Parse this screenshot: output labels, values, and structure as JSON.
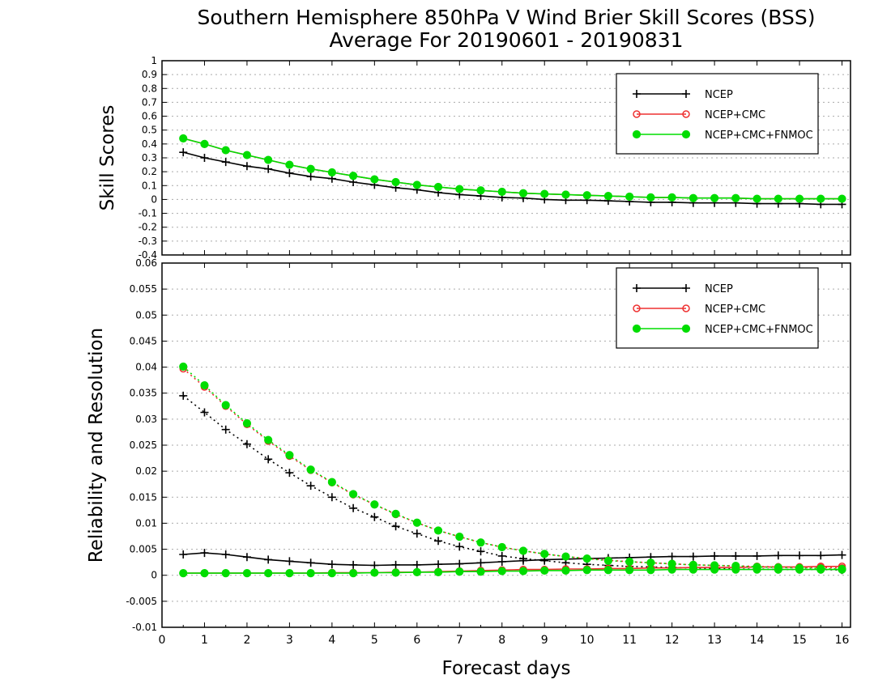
{
  "chart_data": [
    {
      "type": "line",
      "title": "Southern Hemisphere 850hPa V Wind Brier Skill Scores (BSS)",
      "subtitle": "Average For 20190601 - 20190831",
      "ylabel": "Skill Scores",
      "xlabel": "",
      "xlim": [
        0,
        16.2
      ],
      "ylim": [
        -0.4,
        1
      ],
      "yticks": [
        "1",
        "0.9",
        "0.8",
        "0.7",
        "0.6",
        "0.5",
        "0.4",
        "0.3",
        "0.2",
        "0.1",
        "0",
        "-0.1",
        "-0.2",
        "-0.3",
        "-0.4"
      ],
      "grid": true,
      "legend_position": "top-right",
      "legend": [
        "NCEP",
        "NCEP+CMC",
        "NCEP+CMC+FNMOC"
      ],
      "x": [
        0.5,
        1,
        1.5,
        2,
        2.5,
        3,
        3.5,
        4,
        4.5,
        5,
        5.5,
        6,
        6.5,
        7,
        7.5,
        8,
        8.5,
        9,
        9.5,
        10,
        10.5,
        11,
        11.5,
        12,
        12.5,
        13,
        13.5,
        14,
        14.5,
        15,
        15.5,
        16
      ],
      "series": [
        {
          "name": "NCEP",
          "color": "#000000",
          "marker": "plus",
          "style": "solid",
          "values": [
            0.34,
            0.3,
            0.27,
            0.24,
            0.22,
            0.19,
            0.165,
            0.15,
            0.125,
            0.105,
            0.085,
            0.07,
            0.05,
            0.035,
            0.025,
            0.015,
            0.01,
            0.0,
            -0.005,
            -0.005,
            -0.01,
            -0.015,
            -0.02,
            -0.02,
            -0.025,
            -0.025,
            -0.025,
            -0.03,
            -0.03,
            -0.03,
            -0.035,
            -0.035
          ]
        },
        {
          "name": "NCEP+CMC",
          "color": "#ee3030",
          "marker": "open-circle",
          "style": "solid",
          "values": [
            0.44,
            0.4,
            0.355,
            0.32,
            0.285,
            0.25,
            0.22,
            0.195,
            0.17,
            0.145,
            0.125,
            0.105,
            0.09,
            0.075,
            0.065,
            0.055,
            0.045,
            0.04,
            0.035,
            0.03,
            0.025,
            0.02,
            0.015,
            0.015,
            0.01,
            0.01,
            0.01,
            0.005,
            0.005,
            0.005,
            0.005,
            0.005
          ]
        },
        {
          "name": "NCEP+CMC+FNMOC",
          "color": "#00dd00",
          "marker": "filled-circle",
          "style": "solid",
          "values": [
            0.44,
            0.4,
            0.355,
            0.32,
            0.285,
            0.25,
            0.22,
            0.195,
            0.17,
            0.145,
            0.125,
            0.105,
            0.09,
            0.075,
            0.065,
            0.055,
            0.045,
            0.04,
            0.035,
            0.03,
            0.025,
            0.02,
            0.015,
            0.015,
            0.01,
            0.01,
            0.01,
            0.005,
            0.005,
            0.005,
            0.005,
            0.005
          ]
        }
      ]
    },
    {
      "type": "line",
      "ylabel": "Reliability and Resolution",
      "xlabel": "Forecast days",
      "xlim": [
        0,
        16.2
      ],
      "ylim": [
        -0.01,
        0.06
      ],
      "xticks": [
        "0",
        "1",
        "2",
        "3",
        "4",
        "5",
        "6",
        "7",
        "8",
        "9",
        "10",
        "11",
        "12",
        "13",
        "14",
        "15",
        "16"
      ],
      "yticks": [
        "0.06",
        "0.055",
        "0.05",
        "0.045",
        "0.04",
        "0.035",
        "0.03",
        "0.025",
        "0.02",
        "0.015",
        "0.01",
        "0.005",
        "0",
        "-0.005",
        "-0.01"
      ],
      "grid": true,
      "legend_position": "top-right",
      "legend": [
        "NCEP",
        "NCEP+CMC",
        "NCEP+CMC+FNMOC"
      ],
      "x": [
        0.5,
        1,
        1.5,
        2,
        2.5,
        3,
        3.5,
        4,
        4.5,
        5,
        5.5,
        6,
        6.5,
        7,
        7.5,
        8,
        8.5,
        9,
        9.5,
        10,
        10.5,
        11,
        11.5,
        12,
        12.5,
        13,
        13.5,
        14,
        14.5,
        15,
        15.5,
        16
      ],
      "series": [
        {
          "name": "NCEP",
          "metric": "reliability",
          "color": "#000000",
          "marker": "plus",
          "style": "solid",
          "values": [
            0.004,
            0.0043,
            0.004,
            0.0035,
            0.003,
            0.0027,
            0.0024,
            0.0021,
            0.002,
            0.0019,
            0.002,
            0.002,
            0.0021,
            0.0022,
            0.0024,
            0.0026,
            0.0028,
            0.003,
            0.0031,
            0.0032,
            0.0033,
            0.0034,
            0.0035,
            0.0036,
            0.0036,
            0.0037,
            0.0037,
            0.0037,
            0.0038,
            0.0038,
            0.0038,
            0.0039
          ]
        },
        {
          "name": "NCEP",
          "metric": "resolution",
          "color": "#000000",
          "marker": "plus",
          "style": "dotted",
          "values": [
            0.0345,
            0.0313,
            0.028,
            0.0252,
            0.0223,
            0.0197,
            0.0172,
            0.015,
            0.0129,
            0.0112,
            0.0094,
            0.008,
            0.0066,
            0.0055,
            0.0046,
            0.0037,
            0.0032,
            0.0028,
            0.0024,
            0.0021,
            0.0019,
            0.0017,
            0.0016,
            0.0015,
            0.0014,
            0.0013,
            0.0012,
            0.0012,
            0.0011,
            0.0011,
            0.0011,
            0.001
          ]
        },
        {
          "name": "NCEP+CMC",
          "metric": "reliability",
          "color": "#ee3030",
          "marker": "open-circle",
          "style": "solid",
          "values": [
            0.0004,
            0.0004,
            0.0004,
            0.0004,
            0.0004,
            0.0004,
            0.0004,
            0.0005,
            0.0005,
            0.0005,
            0.0006,
            0.0006,
            0.0007,
            0.0008,
            0.0009,
            0.001,
            0.0011,
            0.0011,
            0.0012,
            0.0012,
            0.0013,
            0.0013,
            0.0014,
            0.0014,
            0.0015,
            0.0015,
            0.0015,
            0.0016,
            0.0016,
            0.0016,
            0.0017,
            0.0017
          ]
        },
        {
          "name": "NCEP+CMC",
          "metric": "resolution",
          "color": "#ee3030",
          "marker": "open-circle",
          "style": "dotted",
          "values": [
            0.0397,
            0.0362,
            0.0325,
            0.029,
            0.0258,
            0.0229,
            0.0202,
            0.0178,
            0.0155,
            0.0136,
            0.0117,
            0.0101,
            0.0086,
            0.0074,
            0.0063,
            0.0054,
            0.0047,
            0.0041,
            0.0036,
            0.0032,
            0.0029,
            0.0026,
            0.0024,
            0.0022,
            0.002,
            0.0019,
            0.0018,
            0.0017,
            0.0016,
            0.0015,
            0.0015,
            0.0014
          ]
        },
        {
          "name": "NCEP+CMC+FNMOC",
          "metric": "reliability",
          "color": "#00dd00",
          "marker": "filled-circle",
          "style": "solid",
          "values": [
            0.0004,
            0.0004,
            0.0004,
            0.0004,
            0.0004,
            0.0004,
            0.0004,
            0.0004,
            0.0004,
            0.0005,
            0.0005,
            0.0006,
            0.0006,
            0.0007,
            0.0007,
            0.0008,
            0.0008,
            0.0009,
            0.0009,
            0.001,
            0.001,
            0.001,
            0.001,
            0.0011,
            0.0011,
            0.0011,
            0.0011,
            0.0011,
            0.0011,
            0.0011,
            0.0011,
            0.0011
          ]
        },
        {
          "name": "NCEP+CMC+FNMOC",
          "metric": "resolution",
          "color": "#00dd00",
          "marker": "filled-circle",
          "style": "dotted",
          "values": [
            0.0401,
            0.0365,
            0.0327,
            0.0292,
            0.026,
            0.0231,
            0.0203,
            0.0179,
            0.0156,
            0.0136,
            0.0118,
            0.0101,
            0.0086,
            0.0074,
            0.0063,
            0.0054,
            0.0047,
            0.0041,
            0.0036,
            0.0032,
            0.0028,
            0.0026,
            0.0024,
            0.0022,
            0.002,
            0.0019,
            0.0018,
            0.0016,
            0.0015,
            0.0014,
            0.0013,
            0.0012
          ]
        }
      ]
    }
  ]
}
